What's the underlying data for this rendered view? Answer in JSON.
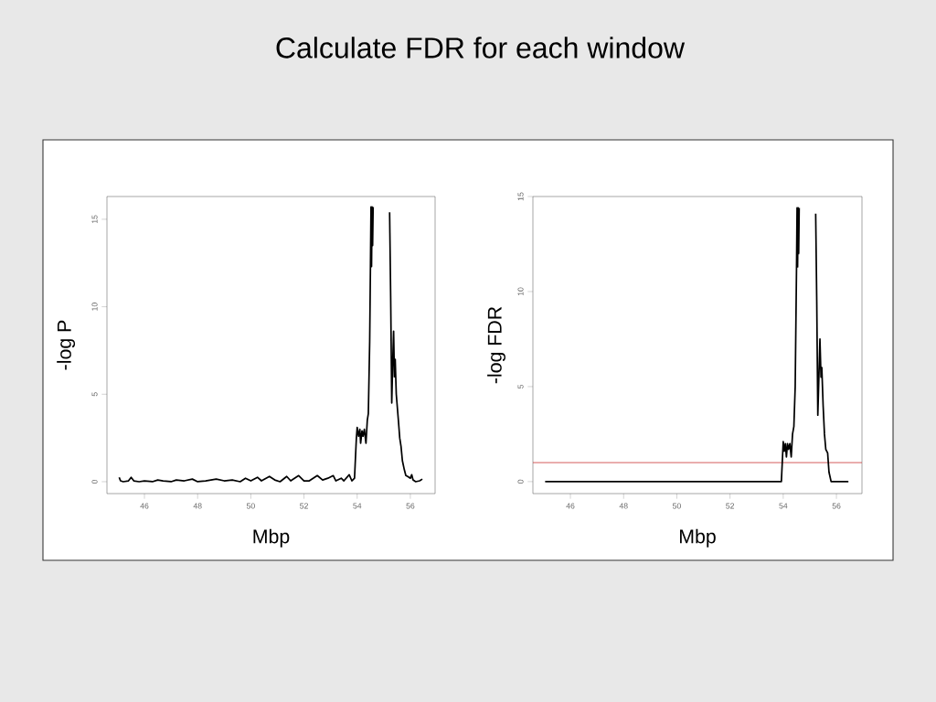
{
  "chart_data": [
    {
      "type": "line",
      "title": "Calculate FDR for each window",
      "xlabel": "Mbp",
      "ylabel": "-log P",
      "color": "#000000",
      "x": [
        45.05,
        45.1,
        45.2,
        45.4,
        45.5,
        45.6,
        45.8,
        46.0,
        46.3,
        46.5,
        46.7,
        47.0,
        47.2,
        47.5,
        47.8,
        48.0,
        48.3,
        48.7,
        49.0,
        49.3,
        49.6,
        49.8,
        50.0,
        50.25,
        50.4,
        50.7,
        50.9,
        51.1,
        51.35,
        51.5,
        51.8,
        52.0,
        52.2,
        52.5,
        52.7,
        52.9,
        53.1,
        53.2,
        53.4,
        53.5,
        53.7,
        53.8,
        53.9,
        53.97,
        54.0,
        54.05,
        54.1,
        54.13,
        54.18,
        54.22,
        54.27,
        54.33,
        54.38,
        54.42,
        54.47,
        54.5,
        54.52,
        54.54,
        54.56,
        54.58,
        54.6,
        54.9,
        55.22,
        55.26,
        55.3,
        55.33,
        55.37,
        55.4,
        55.43,
        55.47,
        55.55,
        55.6,
        55.65,
        55.7,
        55.77,
        55.83,
        55.9,
        56.0,
        56.05,
        56.1,
        56.2,
        56.35,
        56.45
      ],
      "values": [
        0.25,
        0.05,
        0.0,
        0.05,
        0.25,
        0.05,
        0.0,
        0.05,
        0.0,
        0.1,
        0.05,
        0.0,
        0.1,
        0.05,
        0.15,
        0.0,
        0.05,
        0.15,
        0.05,
        0.1,
        0.0,
        0.2,
        0.05,
        0.25,
        0.05,
        0.3,
        0.1,
        0.0,
        0.3,
        0.05,
        0.35,
        0.05,
        0.05,
        0.35,
        0.1,
        0.2,
        0.35,
        0.05,
        0.2,
        0.05,
        0.4,
        0.05,
        0.2,
        2.5,
        3.1,
        2.6,
        3.0,
        2.2,
        2.9,
        2.6,
        3.0,
        2.2,
        3.5,
        3.9,
        8,
        12.5,
        15.7,
        12.3,
        15.7,
        13.5,
        15.7,
        null,
        15.4,
        10.5,
        4.5,
        6.5,
        8.6,
        6.0,
        7.0,
        5.0,
        3.5,
        2.5,
        2.0,
        1.2,
        0.7,
        0.35,
        0.3,
        0.2,
        0.4,
        0.1,
        0.0,
        0.05,
        0.15
      ],
      "xlim": [
        44.59,
        56.93
      ],
      "ylim": [
        -0.68,
        16.3
      ],
      "xticks": [
        46,
        48,
        50,
        52,
        54,
        56
      ],
      "yticks": [
        0,
        5,
        10,
        15
      ]
    },
    {
      "type": "line",
      "xlabel": "Mbp",
      "ylabel": "-log FDR",
      "color": "#000000",
      "x": [
        45.05,
        53.93,
        53.97,
        54.0,
        54.04,
        54.08,
        54.12,
        54.16,
        54.2,
        54.25,
        54.3,
        54.35,
        54.4,
        54.45,
        54.5,
        54.52,
        54.54,
        54.56,
        54.58,
        54.6,
        54.9,
        55.22,
        55.26,
        55.3,
        55.34,
        55.38,
        55.42,
        55.45,
        55.5,
        55.55,
        55.6,
        55.67,
        55.72,
        55.8,
        56.45
      ],
      "values": [
        0,
        0,
        1.2,
        2.1,
        1.6,
        2.0,
        1.3,
        2.0,
        1.7,
        2.0,
        1.3,
        2.5,
        2.9,
        5,
        11.3,
        14.4,
        11.3,
        14.4,
        12.0,
        14.4,
        null,
        14.1,
        9.5,
        3.5,
        5.5,
        7.5,
        5.5,
        6.0,
        4.0,
        2.5,
        1.7,
        1.5,
        0.5,
        0.0,
        0
      ],
      "xlim": [
        44.59,
        56.96
      ],
      "ylim": [
        -0.63,
        15
      ],
      "xticks": [
        46,
        48,
        50,
        52,
        54,
        56
      ],
      "yticks": [
        0,
        5,
        10,
        15
      ],
      "ref_lines": [
        {
          "axis": "y",
          "value": 1,
          "color": "#cc3333"
        }
      ]
    }
  ]
}
